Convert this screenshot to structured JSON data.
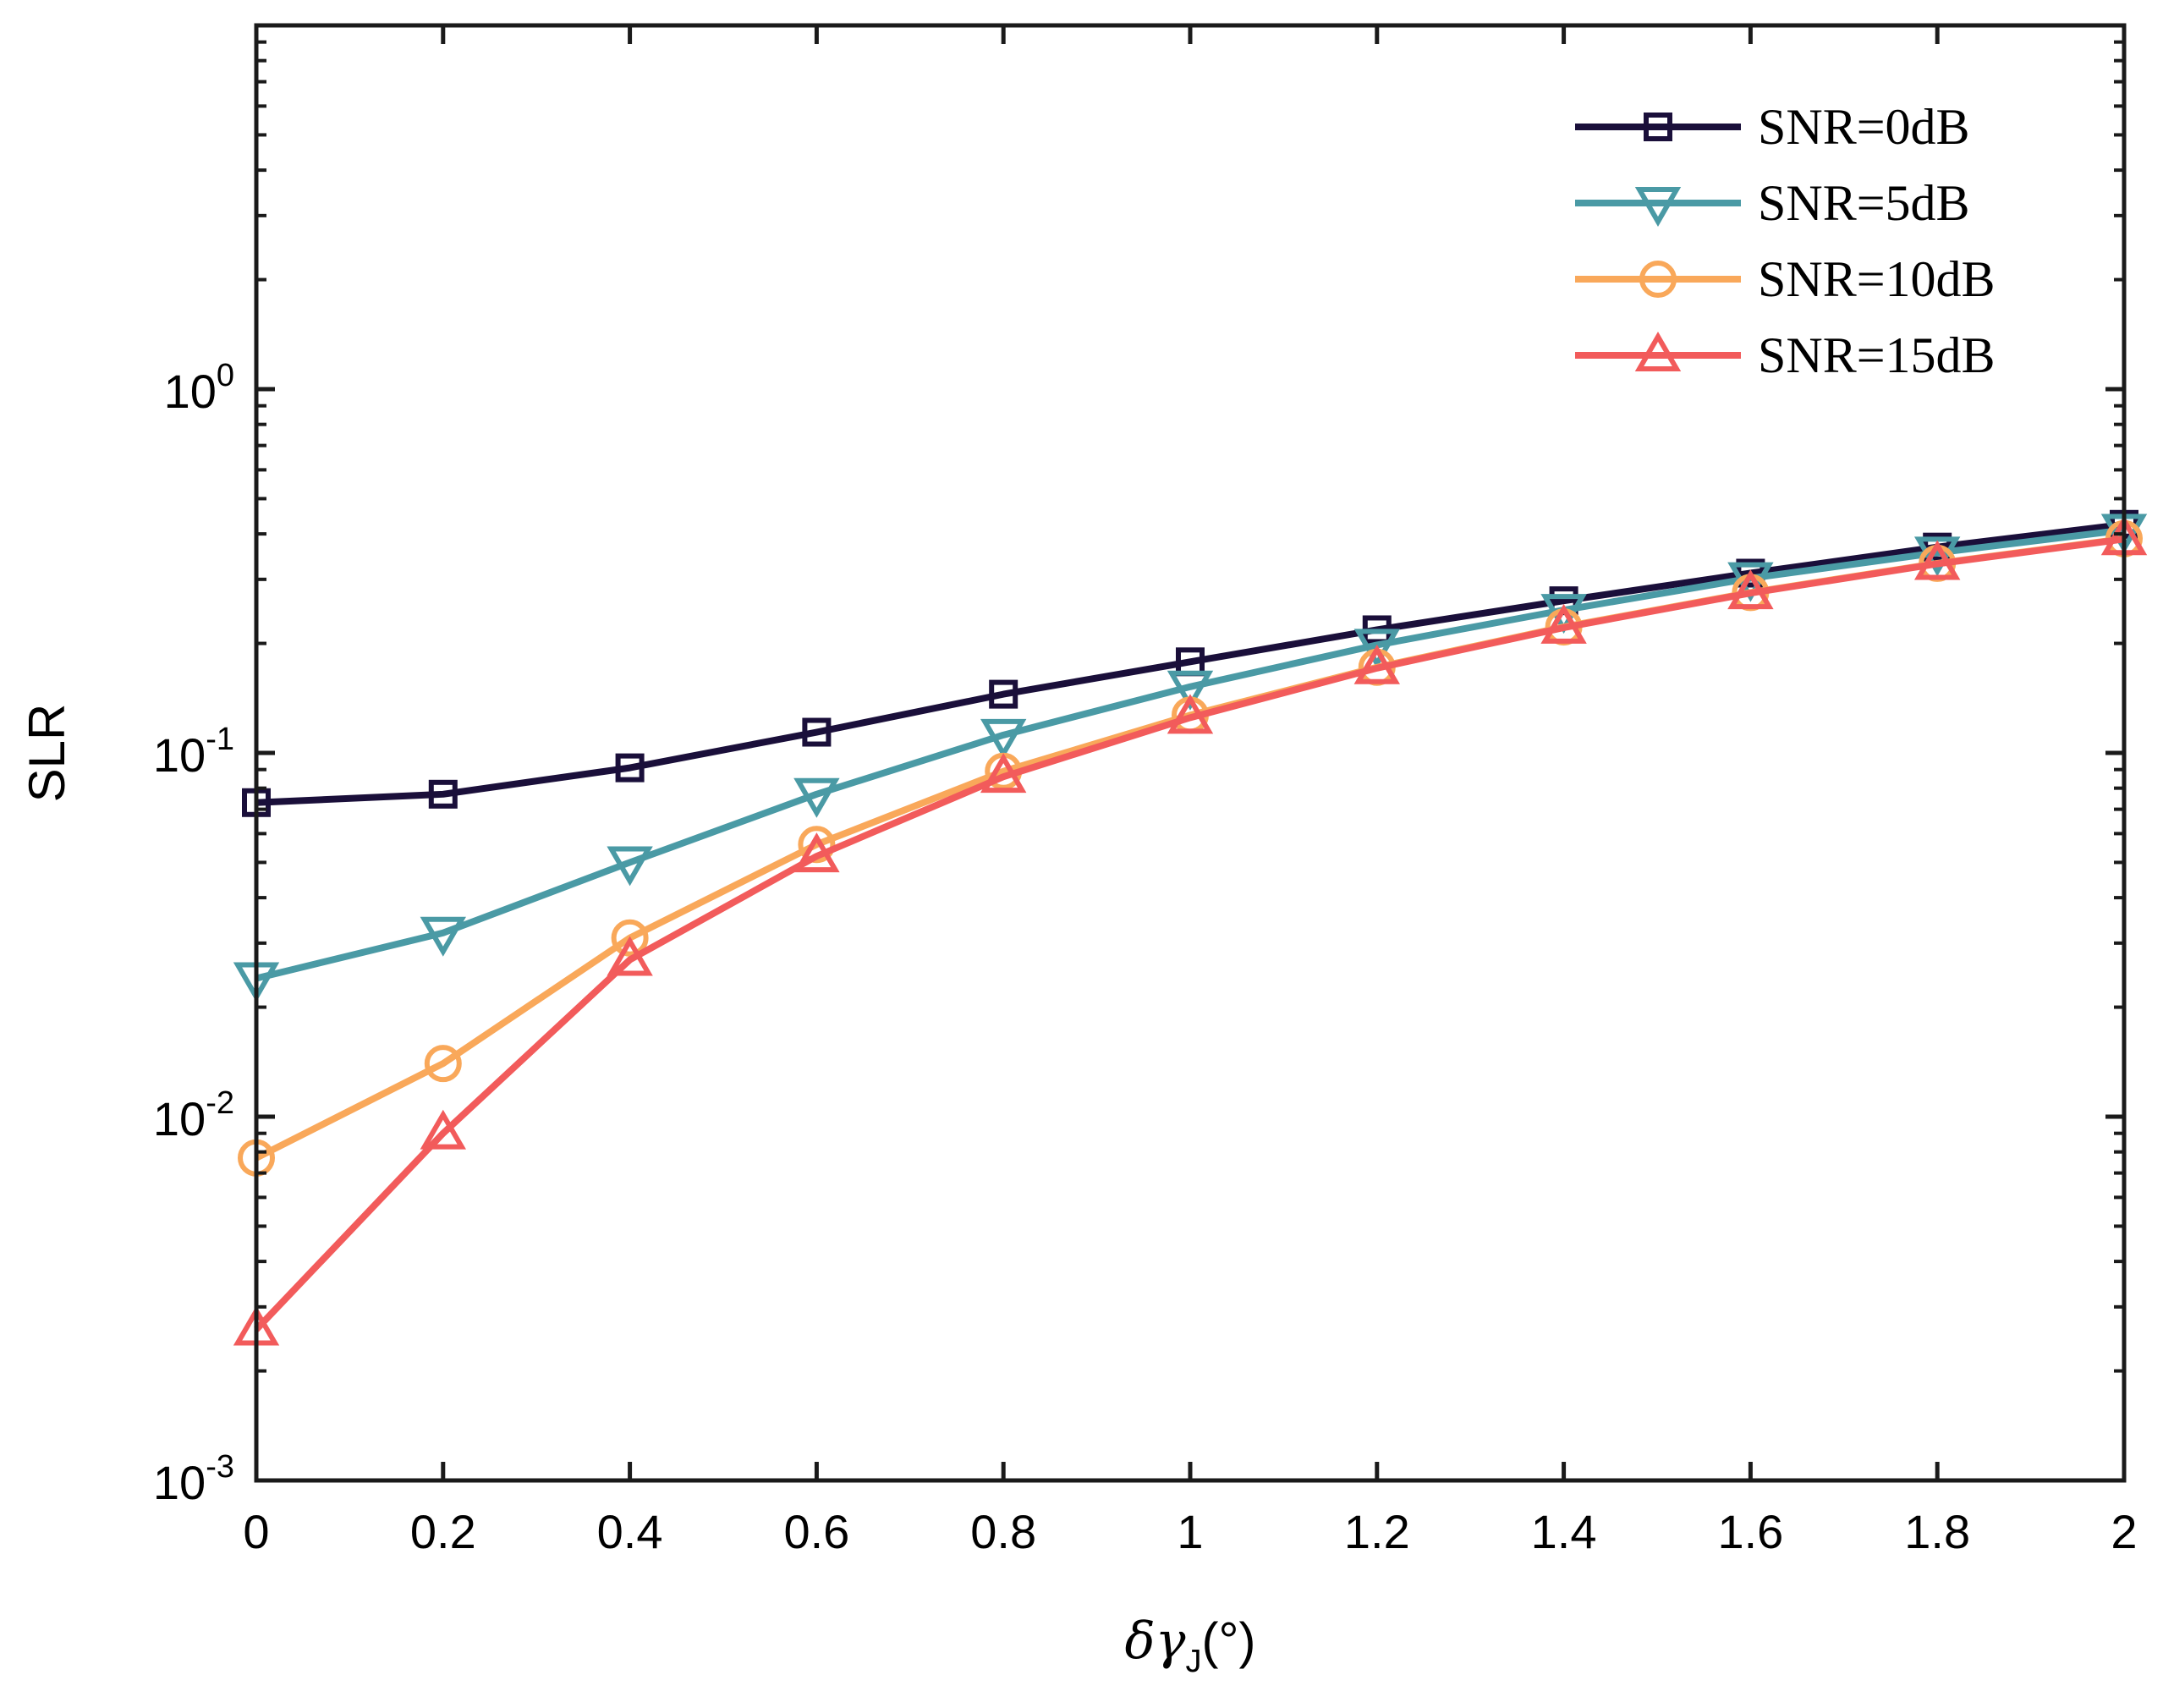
{
  "chart_data": {
    "type": "line",
    "title": "",
    "xlabel": {
      "delta": "δ",
      "gamma": "γ",
      "sub": "J",
      "unit": "(°)"
    },
    "ylabel": "SLR",
    "yscale": "log",
    "xlim": [
      0,
      2
    ],
    "ylim": [
      0.001,
      10
    ],
    "x": [
      0,
      0.2,
      0.4,
      0.6,
      0.8,
      1,
      1.2,
      1.4,
      1.6,
      1.8,
      2
    ],
    "xticks": [
      {
        "value": 0,
        "label": "0"
      },
      {
        "value": 0.2,
        "label": "0.2"
      },
      {
        "value": 0.4,
        "label": "0.4"
      },
      {
        "value": 0.6,
        "label": "0.6"
      },
      {
        "value": 0.8,
        "label": "0.8"
      },
      {
        "value": 1,
        "label": "1"
      },
      {
        "value": 1.2,
        "label": "1.2"
      },
      {
        "value": 1.4,
        "label": "1.4"
      },
      {
        "value": 1.6,
        "label": "1.6"
      },
      {
        "value": 1.8,
        "label": "1.8"
      },
      {
        "value": 2,
        "label": "2"
      }
    ],
    "yticks": [
      {
        "value": 0.001,
        "base": "10",
        "exp": "-3"
      },
      {
        "value": 0.01,
        "base": "10",
        "exp": "-2"
      },
      {
        "value": 0.1,
        "base": "10",
        "exp": "-1"
      },
      {
        "value": 1,
        "base": "10",
        "exp": "0"
      }
    ],
    "legend_position": "top-right",
    "series": [
      {
        "name": "SNR=0dB",
        "color": "#1a0f3a",
        "marker": "square",
        "values": [
          0.073,
          0.077,
          0.091,
          0.114,
          0.145,
          0.178,
          0.218,
          0.262,
          0.312,
          0.368,
          0.425
        ]
      },
      {
        "name": "SNR=5dB",
        "color": "#4a9aa5",
        "marker": "triangle-down",
        "values": [
          0.024,
          0.032,
          0.05,
          0.077,
          0.112,
          0.152,
          0.198,
          0.247,
          0.302,
          0.355,
          0.41
        ]
      },
      {
        "name": "SNR=10dB",
        "color": "#f9a85a",
        "marker": "circle",
        "values": [
          0.0077,
          0.014,
          0.031,
          0.056,
          0.089,
          0.127,
          0.172,
          0.222,
          0.276,
          0.332,
          0.388
        ]
      },
      {
        "name": "SNR=15dB",
        "color": "#f25b5b",
        "marker": "triangle-up",
        "values": [
          0.0026,
          0.009,
          0.027,
          0.052,
          0.086,
          0.125,
          0.171,
          0.221,
          0.275,
          0.331,
          0.387
        ]
      }
    ]
  }
}
